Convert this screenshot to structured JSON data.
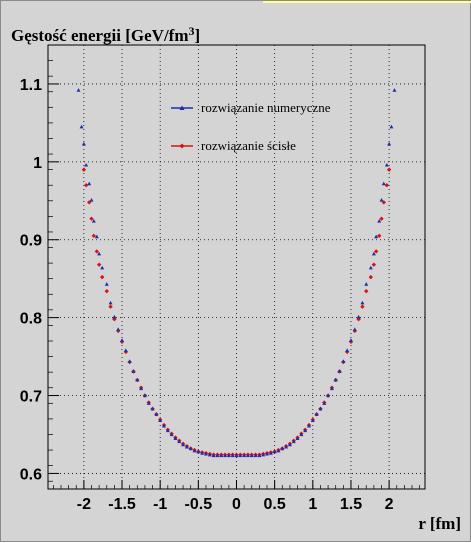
{
  "chart_data": {
    "type": "scatter",
    "title": "Gęstość energii [GeV/fm",
    "title_sup": "3",
    "title_close": "]",
    "xlabel": "r [fm]",
    "ylabel": "",
    "xlim": [
      -2.47,
      2.47
    ],
    "ylim": [
      0.58,
      1.15
    ],
    "xticks": [
      -2,
      -1.5,
      -1,
      -0.5,
      0,
      0.5,
      1,
      1.5,
      2
    ],
    "xtick_labels": [
      "-2",
      "-1.5",
      "-1",
      "-0.5",
      "0",
      "0.5",
      "1",
      "1.5",
      "2"
    ],
    "yticks": [
      0.6,
      0.7,
      0.8,
      0.9,
      1.0,
      1.1
    ],
    "ytick_labels": [
      "0.6",
      "0.7",
      "0.8",
      "0.9",
      "1",
      "1.1"
    ],
    "grid": true,
    "legend_position": "top-center",
    "series": [
      {
        "name": "rozwiązanie numeryczne",
        "color": "#1a2fb0",
        "marker": "triangle",
        "formula": "0.625 + 0.09*r^2 - 0.0001*r^4 + 0.0035*r^6 (approx.)",
        "x": [
          -2.07,
          -2.03,
          -2.0,
          -1.97,
          -1.93,
          -1.9,
          -1.87,
          -1.83,
          -1.8,
          -1.76,
          -1.7,
          -1.65,
          -1.6,
          -1.55,
          -1.5,
          -1.45,
          -1.4,
          -1.35,
          -1.3,
          -1.25,
          -1.2,
          -1.15,
          -1.1,
          -1.05,
          -1.0,
          -0.95,
          -0.9,
          -0.85,
          -0.8,
          -0.75,
          -0.7,
          -0.65,
          -0.6,
          -0.55,
          -0.5,
          -0.45,
          -0.4,
          -0.35,
          -0.3,
          -0.25,
          -0.2,
          -0.15,
          -0.1,
          -0.05,
          0.0,
          0.05,
          0.1,
          0.15,
          0.2,
          0.25,
          0.3,
          0.35,
          0.4,
          0.45,
          0.5,
          0.55,
          0.6,
          0.65,
          0.7,
          0.75,
          0.8,
          0.85,
          0.9,
          0.95,
          1.0,
          1.05,
          1.1,
          1.15,
          1.2,
          1.25,
          1.3,
          1.35,
          1.4,
          1.45,
          1.5,
          1.55,
          1.6,
          1.65,
          1.7,
          1.76,
          1.8,
          1.83,
          1.87,
          1.9,
          1.93,
          1.97,
          2.0,
          2.03,
          2.07
        ],
        "y": [
          1.092,
          1.045,
          1.023,
          0.996,
          0.972,
          0.951,
          0.924,
          0.904,
          0.882,
          0.864,
          0.843,
          0.819,
          0.801,
          0.785,
          0.771,
          0.758,
          0.744,
          0.731,
          0.72,
          0.709,
          0.7,
          0.69,
          0.683,
          0.676,
          0.668,
          0.661,
          0.655,
          0.65,
          0.645,
          0.641,
          0.637,
          0.634,
          0.632,
          0.629,
          0.628,
          0.626,
          0.625,
          0.624,
          0.623,
          0.623,
          0.623,
          0.623,
          0.623,
          0.623,
          0.623,
          0.623,
          0.623,
          0.623,
          0.623,
          0.623,
          0.623,
          0.624,
          0.625,
          0.626,
          0.628,
          0.629,
          0.632,
          0.634,
          0.637,
          0.641,
          0.645,
          0.65,
          0.655,
          0.661,
          0.668,
          0.676,
          0.683,
          0.69,
          0.7,
          0.709,
          0.72,
          0.731,
          0.744,
          0.758,
          0.771,
          0.785,
          0.801,
          0.819,
          0.843,
          0.864,
          0.882,
          0.904,
          0.924,
          0.951,
          0.972,
          0.996,
          1.023,
          1.045,
          1.092
        ]
      },
      {
        "name": "rozwiązanie ścisłe",
        "color": "#dd1111",
        "marker": "diamond",
        "x": [
          -2.0,
          -1.97,
          -1.93,
          -1.9,
          -1.87,
          -1.83,
          -1.8,
          -1.76,
          -1.7,
          -1.65,
          -1.6,
          -1.55,
          -1.5,
          -1.45,
          -1.4,
          -1.35,
          -1.3,
          -1.25,
          -1.2,
          -1.15,
          -1.1,
          -1.05,
          -1.0,
          -0.95,
          -0.9,
          -0.85,
          -0.8,
          -0.75,
          -0.7,
          -0.65,
          -0.6,
          -0.55,
          -0.5,
          -0.45,
          -0.4,
          -0.35,
          -0.3,
          -0.25,
          -0.2,
          -0.15,
          -0.1,
          -0.05,
          0.0,
          0.05,
          0.1,
          0.15,
          0.2,
          0.25,
          0.3,
          0.35,
          0.4,
          0.45,
          0.5,
          0.55,
          0.6,
          0.65,
          0.7,
          0.75,
          0.8,
          0.85,
          0.9,
          0.95,
          1.0,
          1.05,
          1.1,
          1.15,
          1.2,
          1.25,
          1.3,
          1.35,
          1.4,
          1.45,
          1.5,
          1.55,
          1.6,
          1.65,
          1.7,
          1.76,
          1.8,
          1.83,
          1.87,
          1.9,
          1.93,
          1.97,
          2.0
        ],
        "y": [
          0.99,
          0.97,
          0.948,
          0.927,
          0.905,
          0.885,
          0.868,
          0.852,
          0.834,
          0.814,
          0.798,
          0.783,
          0.769,
          0.756,
          0.743,
          0.731,
          0.72,
          0.71,
          0.7,
          0.691,
          0.683,
          0.676,
          0.669,
          0.662,
          0.656,
          0.651,
          0.646,
          0.642,
          0.638,
          0.635,
          0.632,
          0.63,
          0.628,
          0.627,
          0.626,
          0.625,
          0.624,
          0.624,
          0.624,
          0.624,
          0.624,
          0.624,
          0.624,
          0.624,
          0.624,
          0.624,
          0.624,
          0.624,
          0.624,
          0.625,
          0.626,
          0.627,
          0.628,
          0.63,
          0.632,
          0.635,
          0.638,
          0.642,
          0.646,
          0.651,
          0.656,
          0.662,
          0.669,
          0.676,
          0.683,
          0.691,
          0.7,
          0.71,
          0.72,
          0.731,
          0.743,
          0.756,
          0.769,
          0.783,
          0.798,
          0.814,
          0.834,
          0.852,
          0.868,
          0.885,
          0.905,
          0.927,
          0.948,
          0.97,
          0.99
        ]
      }
    ]
  }
}
